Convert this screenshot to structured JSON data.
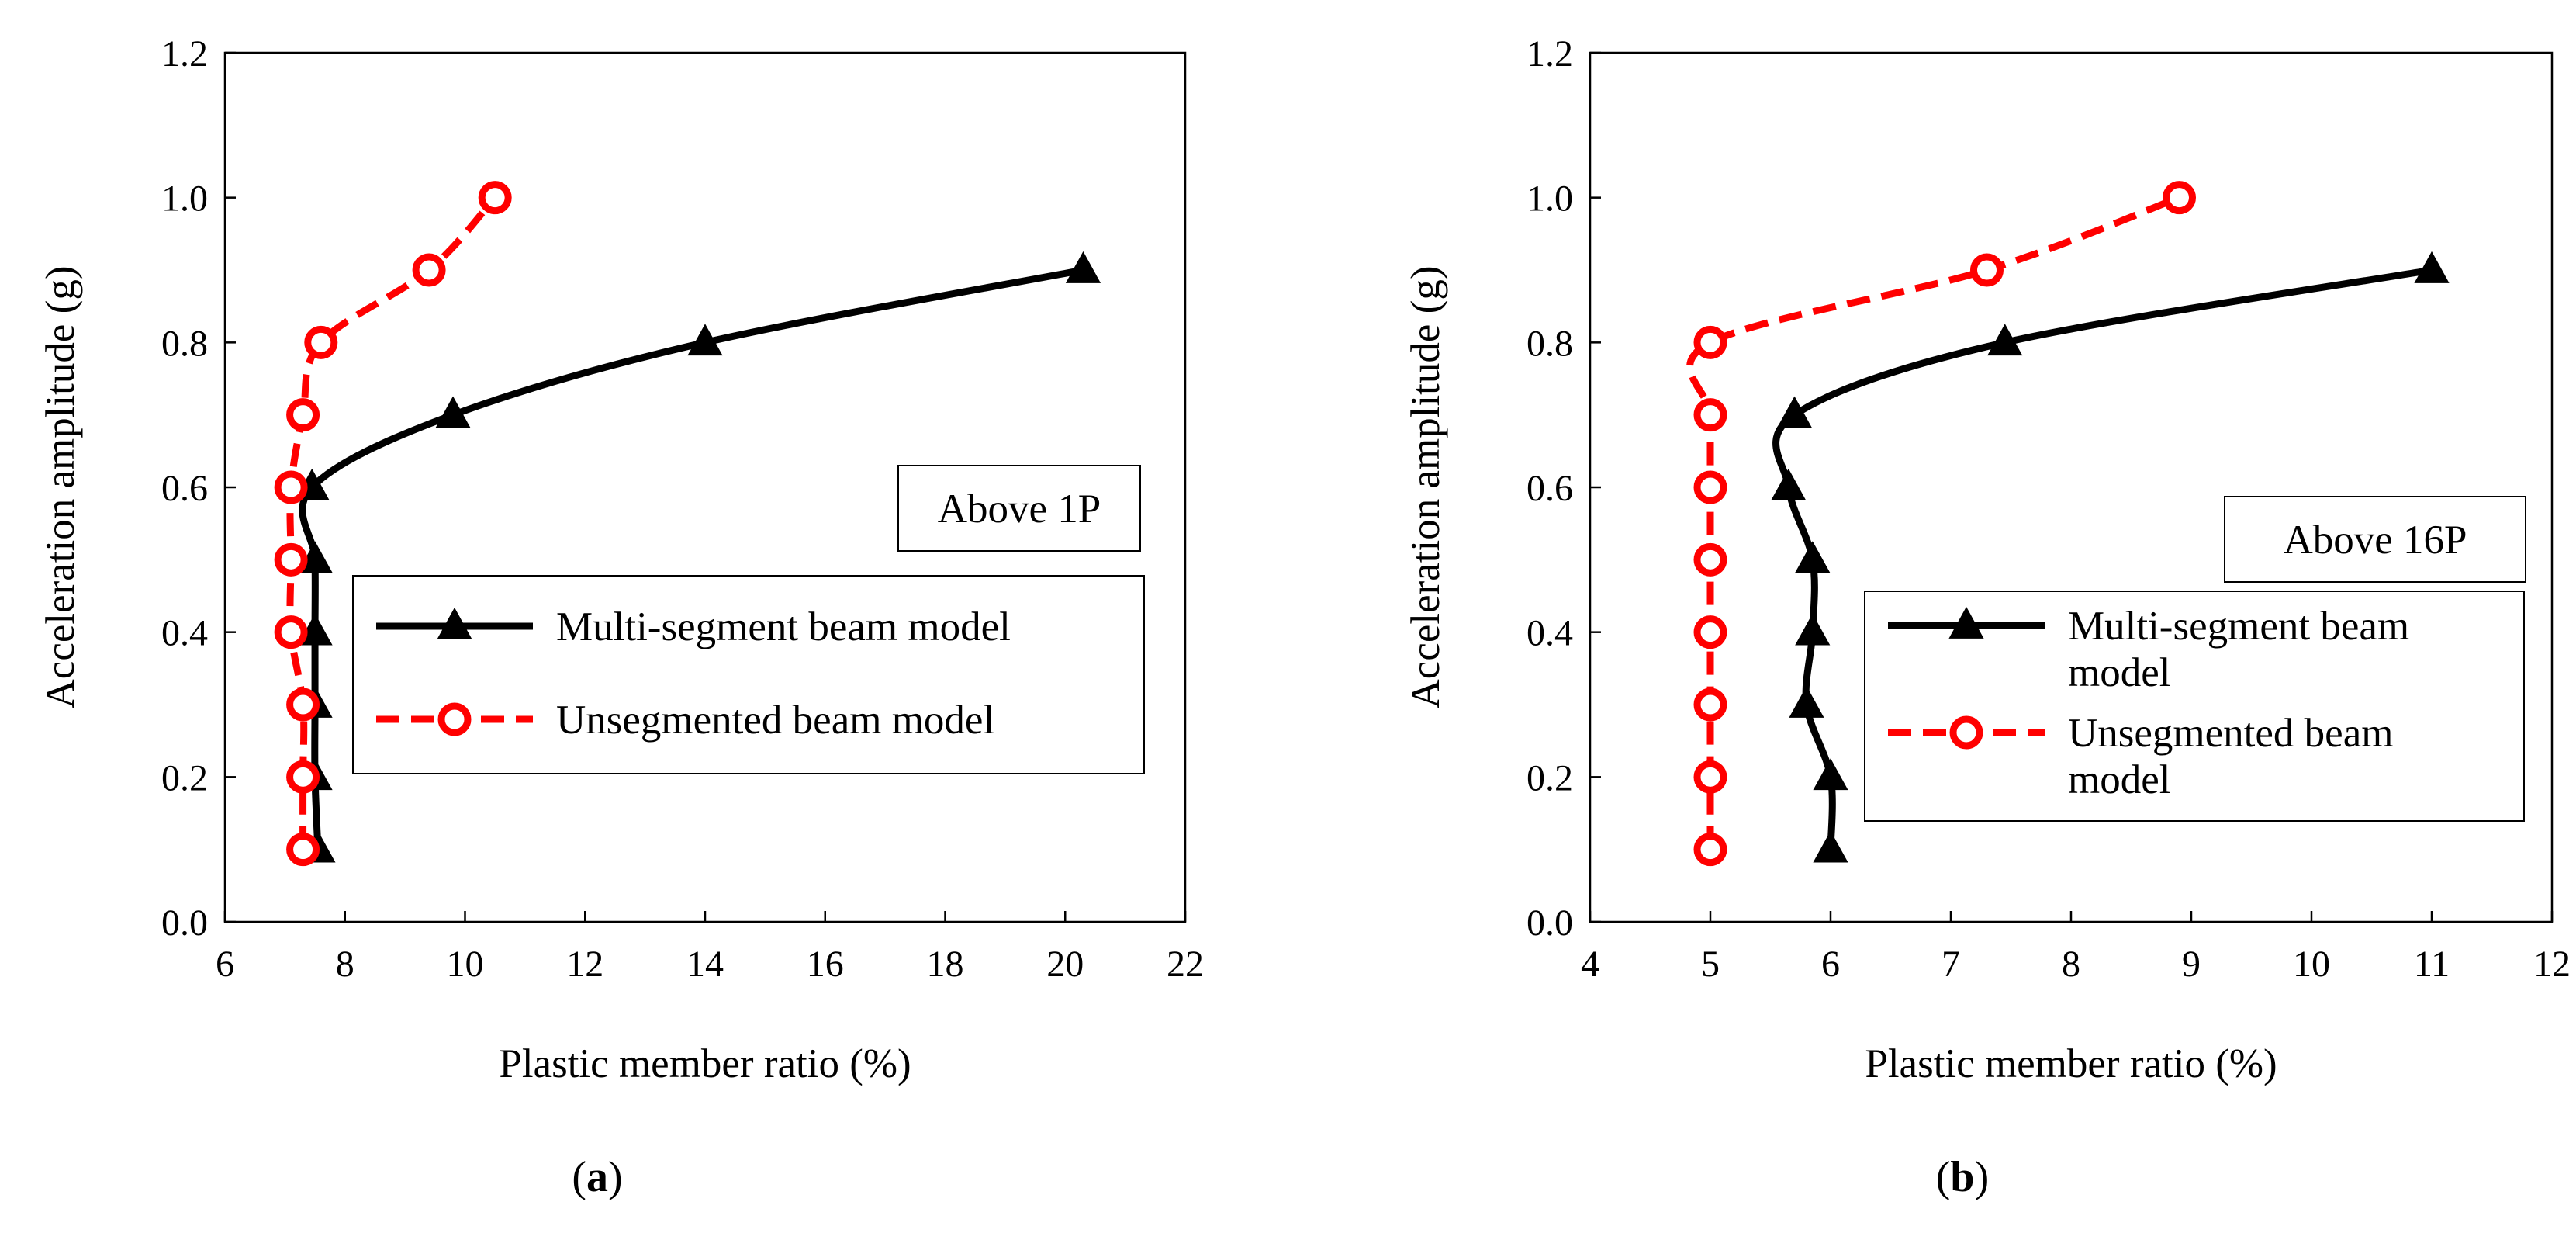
{
  "chart_data": [
    {
      "id": "a",
      "type": "line",
      "panel_label": "a",
      "annotation": "Above 1P",
      "xlabel": "Plastic member ratio (%)",
      "ylabel": "Acceleration amplitude (g)",
      "xlim": [
        6,
        22
      ],
      "ylim": [
        0,
        1.2
      ],
      "xticks": [
        "6",
        "8",
        "10",
        "12",
        "14",
        "16",
        "18",
        "20",
        "22"
      ],
      "yticks": [
        "0.0",
        "0.2",
        "0.4",
        "0.6",
        "0.8",
        "1.0",
        "1.2"
      ],
      "legend_lines": [
        [
          "Multi-segment beam model"
        ],
        [
          "Unsegmented beam model"
        ]
      ],
      "series": [
        {
          "name": "Multi-segment beam model",
          "color": "#000000",
          "marker": "triangle",
          "dash": "solid",
          "x": [
            7.55,
            7.5,
            7.5,
            7.5,
            7.5,
            7.45,
            9.8,
            14.0,
            20.3
          ],
          "y": [
            0.1,
            0.2,
            0.3,
            0.4,
            0.5,
            0.6,
            0.7,
            0.8,
            0.9
          ]
        },
        {
          "name": "Unsegmented beam model",
          "color": "#ff0000",
          "marker": "circle",
          "dash": "dashed",
          "x": [
            7.3,
            7.3,
            7.3,
            7.1,
            7.1,
            7.1,
            7.3,
            7.6,
            9.4,
            10.5
          ],
          "y": [
            0.1,
            0.2,
            0.3,
            0.4,
            0.5,
            0.6,
            0.7,
            0.8,
            0.9,
            1.0
          ]
        }
      ]
    },
    {
      "id": "b",
      "type": "line",
      "panel_label": "b",
      "annotation": "Above 16P",
      "xlabel": "Plastic member ratio (%)",
      "ylabel": "Acceleration amplitude (g)",
      "xlim": [
        4,
        12
      ],
      "ylim": [
        0,
        1.2
      ],
      "xticks": [
        "4",
        "5",
        "6",
        "7",
        "8",
        "9",
        "10",
        "11",
        "12"
      ],
      "yticks": [
        "0.0",
        "0.2",
        "0.4",
        "0.6",
        "0.8",
        "1.0",
        "1.2"
      ],
      "legend_lines": [
        [
          "Multi-segment beam",
          "model"
        ],
        [
          "Unsegmented beam",
          "model"
        ]
      ],
      "series": [
        {
          "name": "Multi-segment beam model",
          "color": "#000000",
          "marker": "triangle",
          "dash": "solid",
          "x": [
            6.0,
            6.0,
            5.8,
            5.85,
            5.85,
            5.65,
            5.7,
            7.45,
            11.0
          ],
          "y": [
            0.1,
            0.2,
            0.3,
            0.4,
            0.5,
            0.6,
            0.7,
            0.8,
            0.9
          ]
        },
        {
          "name": "Unsegmented beam model",
          "color": "#ff0000",
          "marker": "circle",
          "dash": "dashed",
          "x": [
            5.0,
            5.0,
            5.0,
            5.0,
            5.0,
            5.0,
            5.0,
            5.0,
            7.3,
            8.9
          ],
          "y": [
            0.1,
            0.2,
            0.3,
            0.4,
            0.5,
            0.6,
            0.7,
            0.8,
            0.9,
            1.0
          ]
        }
      ]
    }
  ]
}
